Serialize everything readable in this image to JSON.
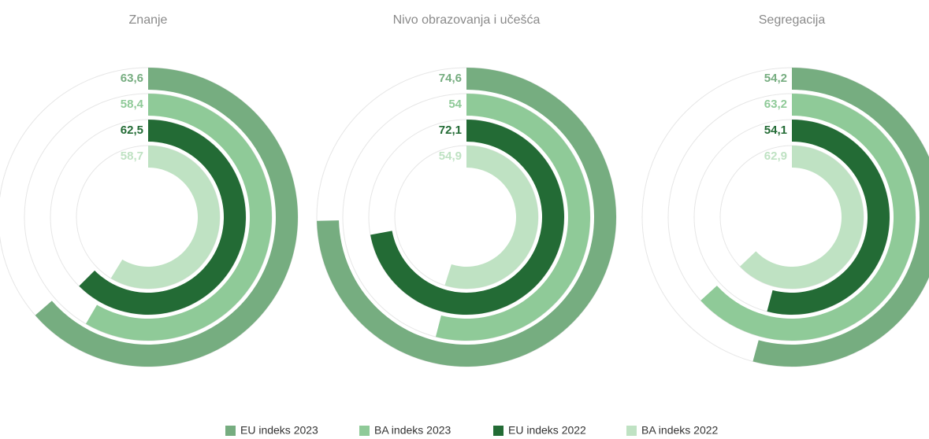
{
  "chart_data": {
    "type": "radialBar",
    "categories": [
      "Znanje",
      "Nivo obrazovanja i učešća",
      "Segregacija"
    ],
    "ylim": [
      0,
      100
    ],
    "series": [
      {
        "name": "EU indeks 2023",
        "color": "#76ad80",
        "values": [
          63.6,
          74.6,
          54.2
        ],
        "value_labels": [
          "63,6",
          "74,6",
          "54,2"
        ]
      },
      {
        "name": "BA indeks 2023",
        "color": "#8fca98",
        "values": [
          58.4,
          54,
          63.2
        ],
        "value_labels": [
          "58,4",
          "54",
          "63,2"
        ]
      },
      {
        "name": "EU indeks 2022",
        "color": "#236b35",
        "values": [
          62.5,
          72.1,
          54.1
        ],
        "value_labels": [
          "62,5",
          "72,1",
          "54,1"
        ]
      },
      {
        "name": "BA indeks 2022",
        "color": "#bfe2c3",
        "values": [
          58.7,
          54.9,
          62.9
        ],
        "value_labels": [
          "58,7",
          "54,9",
          "62,9"
        ]
      }
    ]
  }
}
